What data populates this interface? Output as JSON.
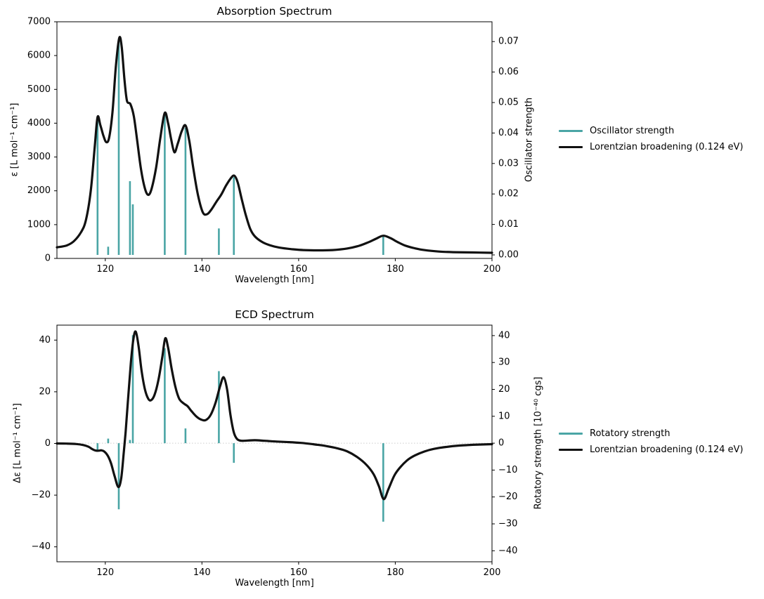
{
  "figure": {
    "background": "#ffffff"
  },
  "colors": {
    "stick": "#4aa5a5",
    "curve": "#111111",
    "zero_line": "#cccccc",
    "spine": "#000000",
    "text": "#000000"
  },
  "chart_data": {
    "type": "line",
    "charts": [
      {
        "id": "absorption",
        "title": "Absorption Spectrum",
        "xlabel": "Wavelength [nm]",
        "ylabel_left": "ε [L mol⁻¹ cm⁻¹]",
        "ylabel_right": "Oscillator strength",
        "xlim": [
          110,
          200
        ],
        "x_tick_values": [
          120,
          140,
          160,
          180,
          200
        ],
        "x_tick_labels": [
          "120",
          "140",
          "160",
          "180",
          "200"
        ],
        "left_axis": {
          "lim": [
            0,
            7000
          ],
          "tick_values": [
            0,
            1000,
            2000,
            3000,
            4000,
            5000,
            6000,
            7000
          ],
          "tick_labels": [
            "0",
            "1000",
            "2000",
            "3000",
            "4000",
            "5000",
            "6000",
            "7000"
          ]
        },
        "right_axis": {
          "lim": [
            -0.00115,
            0.0765
          ],
          "tick_values": [
            0,
            0.01,
            0.02,
            0.03,
            0.04,
            0.05,
            0.06,
            0.07
          ],
          "tick_labels": [
            "0.00",
            "0.01",
            "0.02",
            "0.03",
            "0.04",
            "0.05",
            "0.06",
            "0.07"
          ]
        },
        "zero_line": false,
        "legend": [
          {
            "label": "Oscillator strength",
            "color_key": "stick"
          },
          {
            "label": "Lorentzian broadening (0.124 eV)",
            "color_key": "curve"
          }
        ],
        "series": [
          {
            "name": "Oscillator strength",
            "type": "stick",
            "axis": "right",
            "points": [
              [
                118.4,
                0.044
              ],
              [
                120.6,
                0.0027
              ],
              [
                122.8,
                0.0702
              ],
              [
                125.1,
                0.0242
              ],
              [
                125.7,
                0.0166
              ],
              [
                132.3,
                0.0464
              ],
              [
                136.6,
                0.0417
              ],
              [
                143.5,
                0.0087
              ],
              [
                146.6,
                0.0255
              ],
              [
                177.5,
                0.006
              ]
            ]
          },
          {
            "name": "Lorentzian broadening (0.124 eV)",
            "type": "line",
            "axis": "right",
            "points": [
              [
                110,
                0.0025
              ],
              [
                112,
                0.0031
              ],
              [
                113.5,
                0.0045
              ],
              [
                115,
                0.0075
              ],
              [
                116,
                0.0115
              ],
              [
                117,
                0.021
              ],
              [
                117.8,
                0.035
              ],
              [
                118.4,
                0.0452
              ],
              [
                119,
                0.0425
              ],
              [
                119.6,
                0.0392
              ],
              [
                120.2,
                0.037
              ],
              [
                120.8,
                0.0385
              ],
              [
                121.5,
                0.047
              ],
              [
                122.2,
                0.062
              ],
              [
                122.9,
                0.0712
              ],
              [
                123.4,
                0.0682
              ],
              [
                124,
                0.057
              ],
              [
                124.5,
                0.0505
              ],
              [
                125.2,
                0.0495
              ],
              [
                125.9,
                0.0455
              ],
              [
                126.6,
                0.0375
              ],
              [
                127.4,
                0.028
              ],
              [
                128.2,
                0.0218
              ],
              [
                128.9,
                0.0197
              ],
              [
                129.6,
                0.0218
              ],
              [
                130.5,
                0.0285
              ],
              [
                131.4,
                0.0385
              ],
              [
                132.3,
                0.0466
              ],
              [
                133,
                0.0432
              ],
              [
                133.6,
                0.0382
              ],
              [
                134.3,
                0.0337
              ],
              [
                135,
                0.0365
              ],
              [
                135.8,
                0.0405
              ],
              [
                136.6,
                0.0425
              ],
              [
                137.4,
                0.0372
              ],
              [
                138.2,
                0.0285
              ],
              [
                139.2,
                0.0195
              ],
              [
                140.2,
                0.0139
              ],
              [
                141.1,
                0.0134
              ],
              [
                142,
                0.015
              ],
              [
                143,
                0.0175
              ],
              [
                144,
                0.0198
              ],
              [
                145,
                0.0228
              ],
              [
                146,
                0.0252
              ],
              [
                146.7,
                0.026
              ],
              [
                147.4,
                0.0238
              ],
              [
                148.2,
                0.0185
              ],
              [
                149,
                0.0135
              ],
              [
                150,
                0.0085
              ],
              [
                151,
                0.006
              ],
              [
                152.5,
                0.0042
              ],
              [
                154,
                0.0032
              ],
              [
                156,
                0.0024
              ],
              [
                158.5,
                0.0019
              ],
              [
                161,
                0.0016
              ],
              [
                164,
                0.0015
              ],
              [
                167,
                0.0016
              ],
              [
                170,
                0.0021
              ],
              [
                172.5,
                0.003
              ],
              [
                174.5,
                0.0042
              ],
              [
                176,
                0.0053
              ],
              [
                177.5,
                0.0063
              ],
              [
                179,
                0.0055
              ],
              [
                180.5,
                0.0042
              ],
              [
                182,
                0.0031
              ],
              [
                184,
                0.0022
              ],
              [
                186,
                0.0016
              ],
              [
                189,
                0.0011
              ],
              [
                192,
                0.0009
              ],
              [
                196,
                0.0008
              ],
              [
                200,
                0.0007
              ]
            ]
          }
        ]
      },
      {
        "id": "ecd",
        "title": "ECD Spectrum",
        "xlabel": "Wavelength [nm]",
        "ylabel_left": "Δε [L mol⁻¹ cm⁻¹]",
        "ylabel_right": "Rotatory strength [10⁻⁴⁰ cgs]",
        "xlim": [
          110,
          200
        ],
        "x_tick_values": [
          120,
          140,
          160,
          180,
          200
        ],
        "x_tick_labels": [
          "120",
          "140",
          "160",
          "180",
          "200"
        ],
        "left_axis": {
          "lim": [
            -45.8,
            45.8
          ],
          "tick_values": [
            -40,
            -20,
            0,
            20,
            40
          ],
          "tick_labels": [
            "−40",
            "−20",
            "0",
            "20",
            "40"
          ]
        },
        "right_axis": {
          "lim": [
            -44.1,
            43.9
          ],
          "tick_values": [
            -40,
            -30,
            -20,
            -10,
            0,
            10,
            20,
            30,
            40
          ],
          "tick_labels": [
            "−40",
            "−30",
            "−20",
            "−10",
            "0",
            "10",
            "20",
            "30",
            "40"
          ]
        },
        "zero_line": true,
        "legend": [
          {
            "label": "Rotatory strength",
            "color_key": "stick"
          },
          {
            "label": "Lorentzian broadening (0.124 eV)",
            "color_key": "curve"
          }
        ],
        "series": [
          {
            "name": "Rotatory strength",
            "type": "stick",
            "axis": "right",
            "points": [
              [
                118.4,
                -2.5
              ],
              [
                120.6,
                1.7
              ],
              [
                122.8,
                -24.6
              ],
              [
                125.1,
                1.2
              ],
              [
                125.7,
                40.2
              ],
              [
                132.3,
                35.3
              ],
              [
                136.6,
                5.5
              ],
              [
                143.5,
                26.8
              ],
              [
                146.6,
                -7.3
              ],
              [
                177.5,
                -29.2
              ]
            ]
          },
          {
            "name": "Lorentzian broadening (0.124 eV)",
            "type": "line",
            "axis": "right",
            "points": [
              [
                110,
                -0.1
              ],
              [
                112,
                -0.15
              ],
              [
                114,
                -0.3
              ],
              [
                115.5,
                -0.7
              ],
              [
                116.5,
                -1.3
              ],
              [
                117.4,
                -2.3
              ],
              [
                118,
                -2.75
              ],
              [
                118.6,
                -2.8
              ],
              [
                119.2,
                -2.65
              ],
              [
                119.8,
                -3.1
              ],
              [
                120.5,
                -4.6
              ],
              [
                121.2,
                -7.5
              ],
              [
                121.9,
                -12
              ],
              [
                122.7,
                -16.3
              ],
              [
                123.3,
                -13
              ],
              [
                123.8,
                -4
              ],
              [
                124.2,
                4
              ],
              [
                124.7,
                16
              ],
              [
                125.3,
                30
              ],
              [
                125.8,
                38.5
              ],
              [
                126.3,
                41.5
              ],
              [
                126.9,
                36
              ],
              [
                127.5,
                27
              ],
              [
                128.2,
                20
              ],
              [
                128.9,
                16.5
              ],
              [
                129.5,
                16
              ],
              [
                130.2,
                18
              ],
              [
                131,
                23.5
              ],
              [
                131.8,
                32
              ],
              [
                132.4,
                39
              ],
              [
                133,
                35.5
              ],
              [
                133.7,
                28
              ],
              [
                134.5,
                21
              ],
              [
                135.3,
                16.5
              ],
              [
                136.2,
                14.8
              ],
              [
                137,
                13.8
              ],
              [
                137.8,
                12
              ],
              [
                138.8,
                10
              ],
              [
                139.8,
                8.8
              ],
              [
                140.8,
                8.6
              ],
              [
                141.8,
                10.5
              ],
              [
                142.8,
                15
              ],
              [
                143.8,
                21.5
              ],
              [
                144.5,
                24.5
              ],
              [
                145.2,
                20
              ],
              [
                145.9,
                10.5
              ],
              [
                146.6,
                4
              ],
              [
                147.3,
                1.5
              ],
              [
                148.2,
                0.9
              ],
              [
                149.5,
                1
              ],
              [
                151,
                1.1
              ],
              [
                153,
                0.9
              ],
              [
                155.5,
                0.6
              ],
              [
                158,
                0.4
              ],
              [
                160.5,
                0.1
              ],
              [
                163,
                -0.4
              ],
              [
                165.5,
                -1
              ],
              [
                168,
                -1.9
              ],
              [
                170,
                -3
              ],
              [
                172,
                -5
              ],
              [
                174,
                -8
              ],
              [
                175.5,
                -11.5
              ],
              [
                176.6,
                -16
              ],
              [
                177.6,
                -20.8
              ],
              [
                178.6,
                -17
              ],
              [
                179.8,
                -12
              ],
              [
                181,
                -9
              ],
              [
                182.5,
                -6.3
              ],
              [
                184,
                -4.6
              ],
              [
                186,
                -3.1
              ],
              [
                188,
                -2.1
              ],
              [
                190.5,
                -1.4
              ],
              [
                193,
                -0.9
              ],
              [
                196,
                -0.6
              ],
              [
                200,
                -0.35
              ]
            ]
          }
        ]
      }
    ]
  }
}
